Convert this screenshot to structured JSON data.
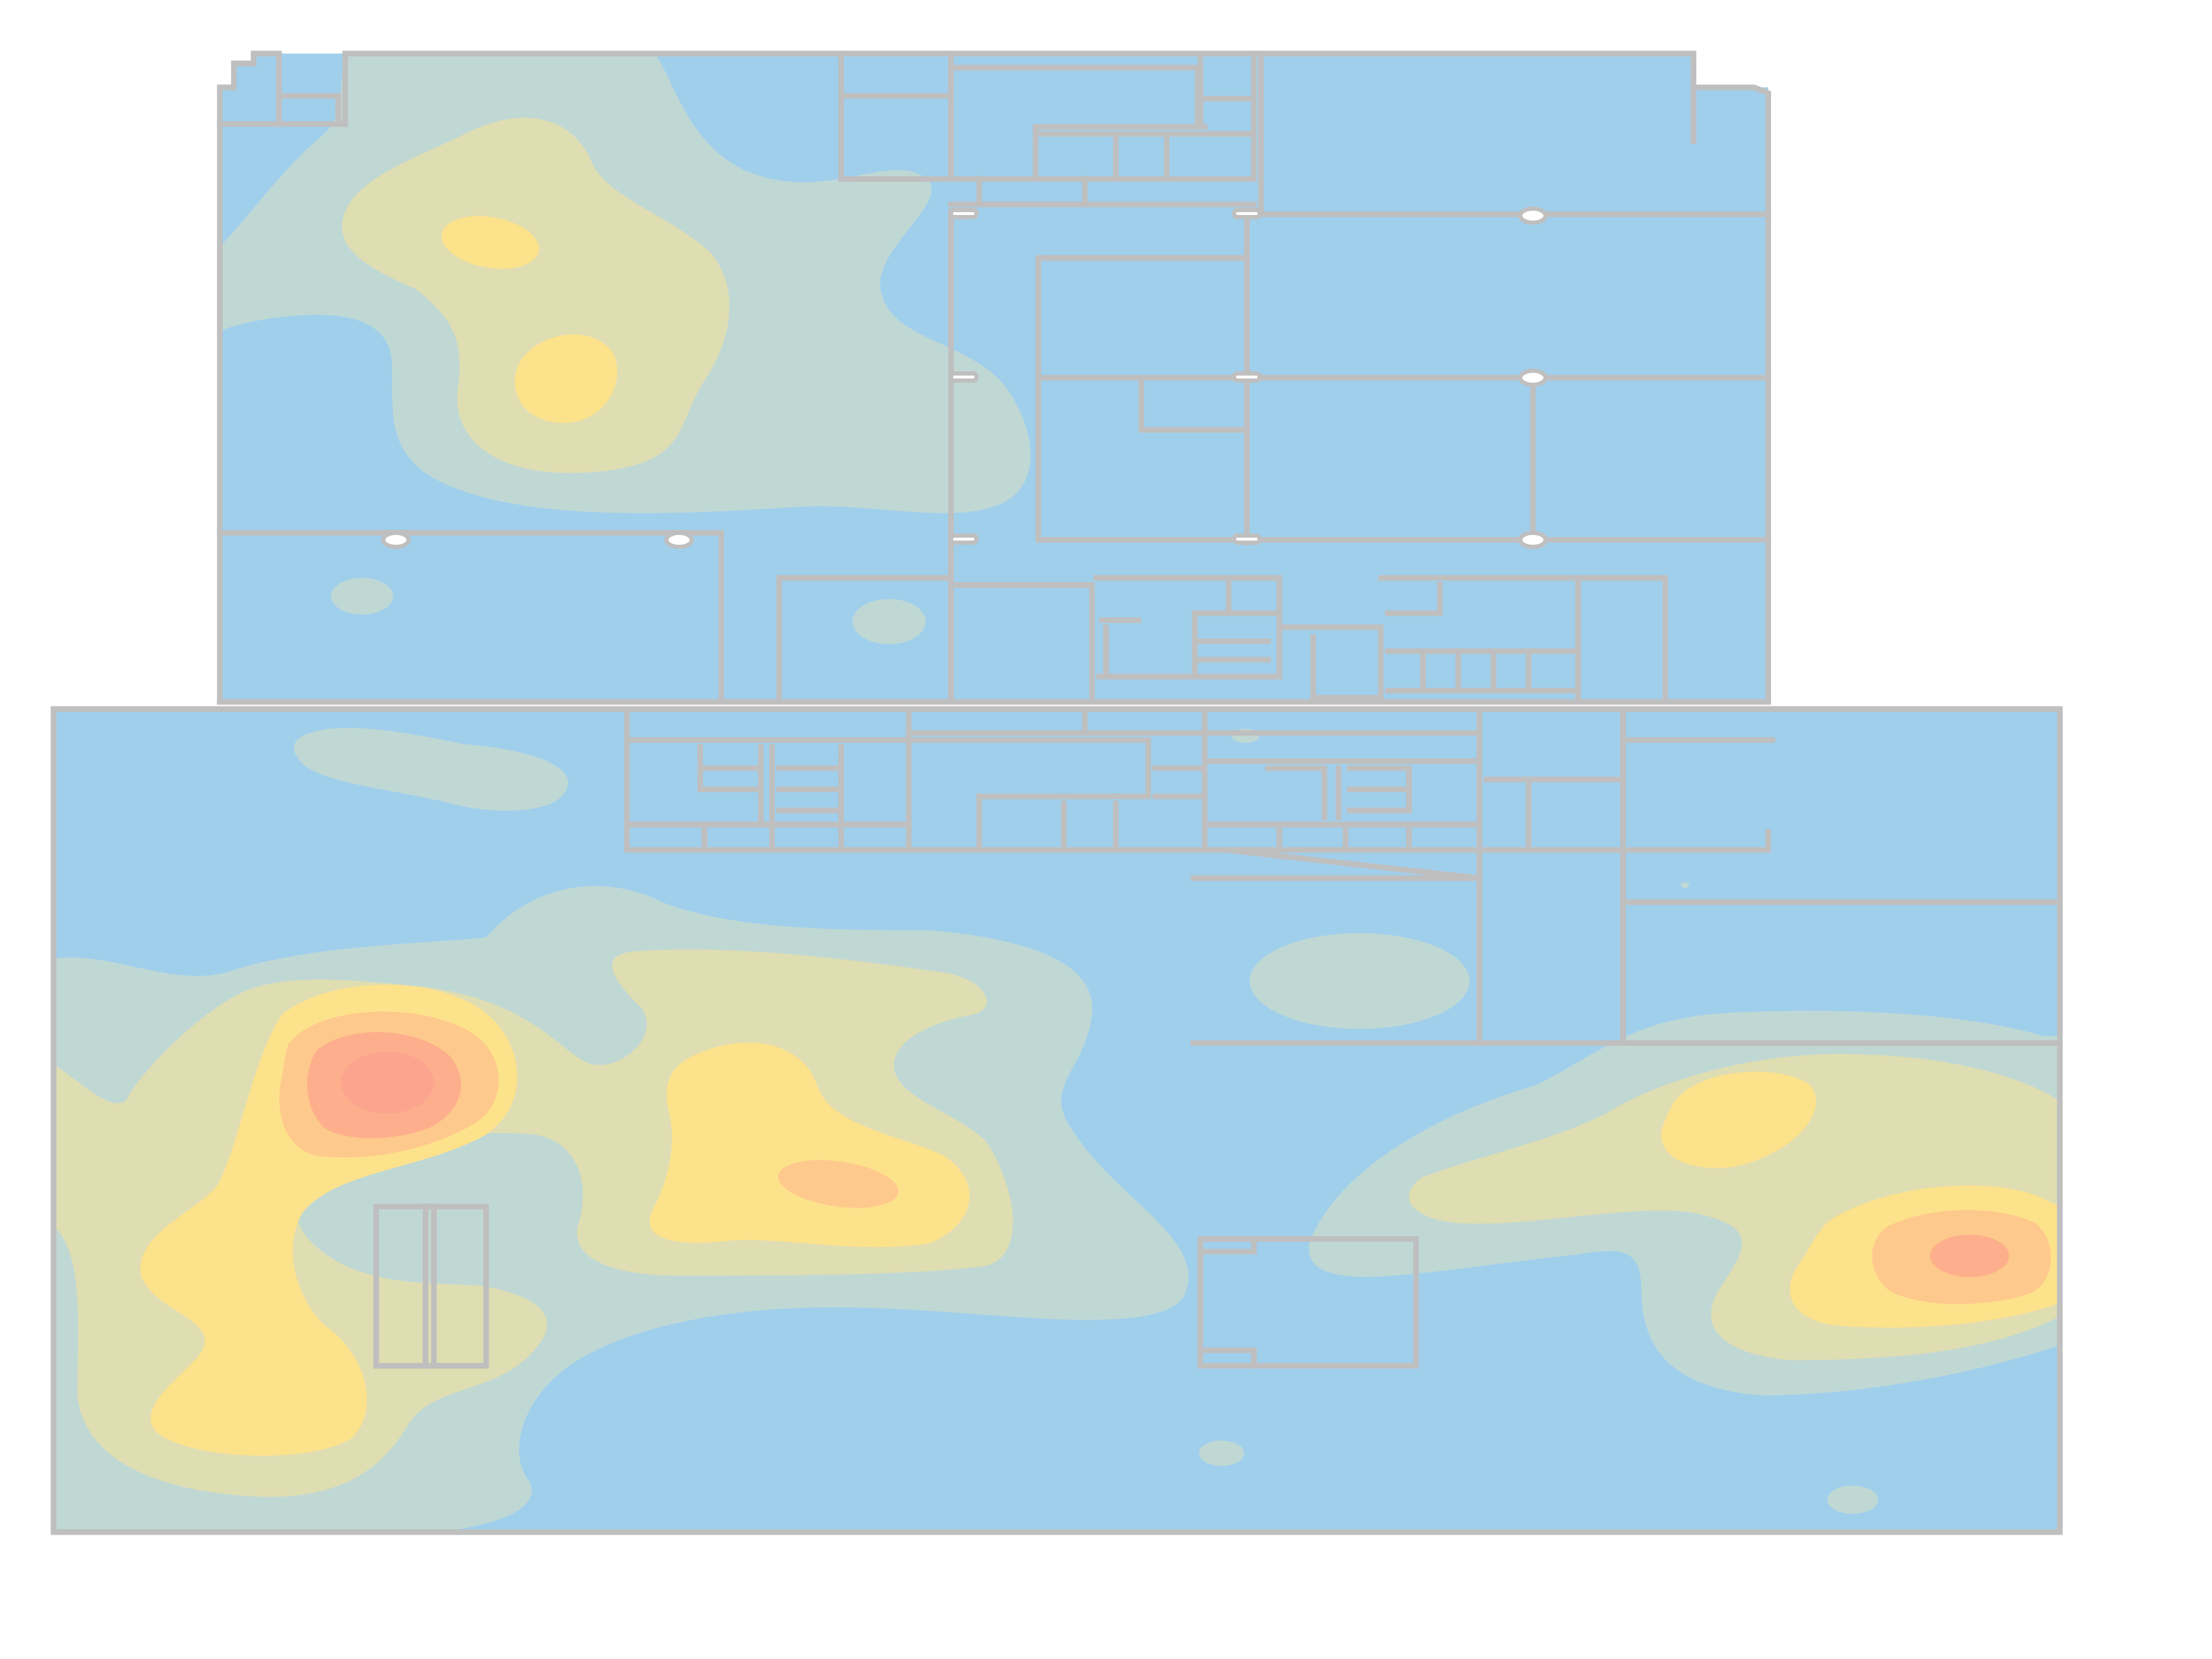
{
  "map": {
    "type": "floor-plan-heatmap",
    "background_color": "#ffffff",
    "wall_color": "#bfbfbf",
    "door_marker_color": "#ffffff",
    "legend_visible": false,
    "grid_visible": false
  },
  "heat_levels": [
    {
      "level": 0,
      "color": "#a0cfec"
    },
    {
      "level": 1,
      "color": "#c0d8d4"
    },
    {
      "level": 2,
      "color": "#dfddb2"
    },
    {
      "level": 3,
      "color": "#fde28c"
    },
    {
      "level": 4,
      "color": "#fec98c"
    },
    {
      "level": 5,
      "color": "#fdae8c"
    },
    {
      "level": 6,
      "color": "#fba58e"
    }
  ],
  "zones": [
    {
      "id": "upper-left-hotspot-1",
      "peak_level": 3
    },
    {
      "id": "upper-left-hotspot-2",
      "peak_level": 3
    },
    {
      "id": "lower-left-hotspot",
      "peak_level": 6
    },
    {
      "id": "lower-center-hotspot",
      "peak_level": 4
    },
    {
      "id": "lower-right-hotspot",
      "peak_level": 5
    },
    {
      "id": "right-upper-hotspot",
      "peak_level": 3
    }
  ]
}
